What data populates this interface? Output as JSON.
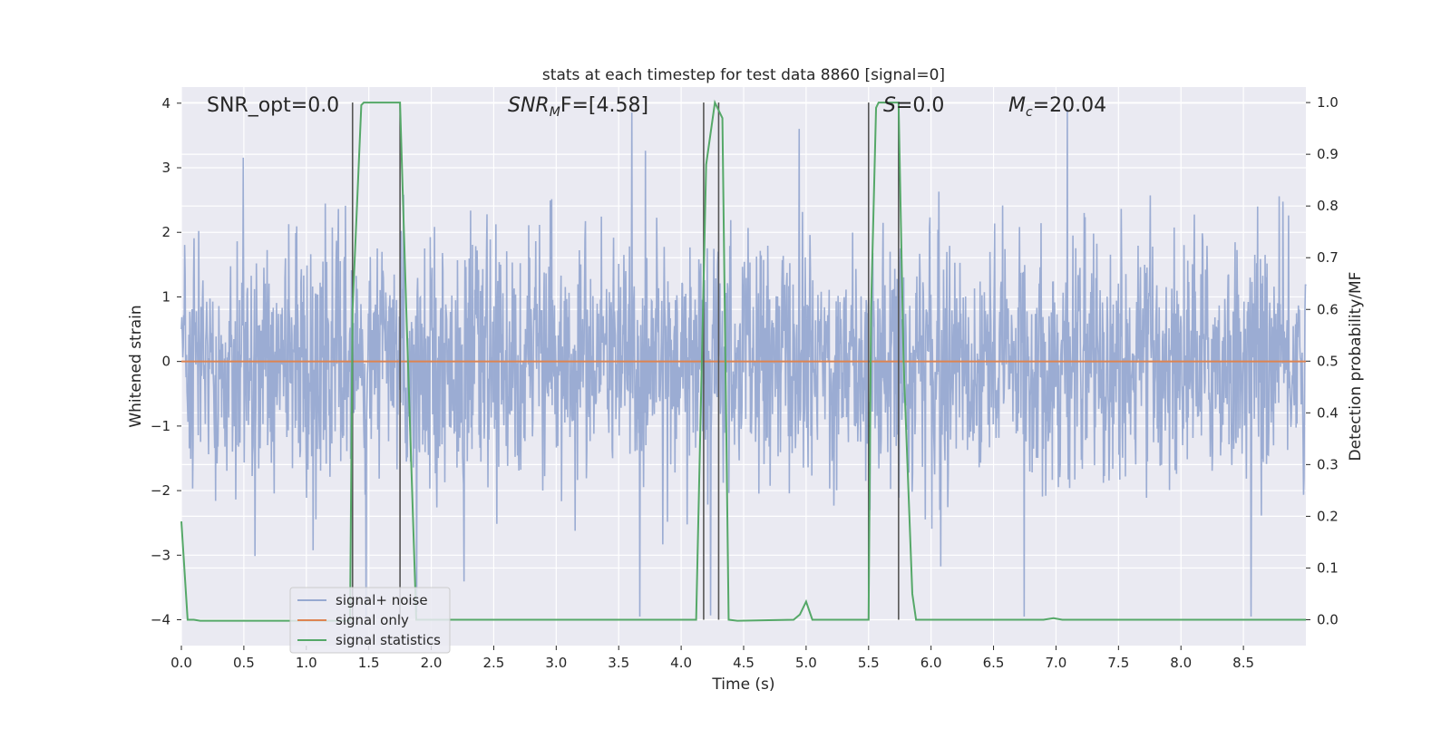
{
  "chart_data": {
    "type": "line",
    "title": "stats at each timestep for test data 8860 [signal=0]",
    "xlabel": "Time (s)",
    "ylabel_left": "Whitened strain",
    "ylabel_right": "Detection probability/MF",
    "xlim": [
      0.0,
      9.0
    ],
    "ylim_left": [
      -4.4,
      4.25
    ],
    "ylim_right": [
      -0.05,
      1.03
    ],
    "x_ticks": [
      "0.0",
      "0.5",
      "1.0",
      "1.5",
      "2.0",
      "2.5",
      "3.0",
      "3.5",
      "4.0",
      "4.5",
      "5.0",
      "5.5",
      "6.0",
      "6.5",
      "7.0",
      "7.5",
      "8.0",
      "8.5"
    ],
    "y_ticks_left": [
      "4",
      "3",
      "2",
      "1",
      "0",
      "−1",
      "−2",
      "−3",
      "−4"
    ],
    "y_ticks_right": [
      "1.0",
      "0.9",
      "0.8",
      "0.7",
      "0.6",
      "0.5",
      "0.4",
      "0.3",
      "0.2",
      "0.1",
      "0.0"
    ],
    "grid": true,
    "legend_position": "lower-left",
    "colors": {
      "background": "#eaeaf2",
      "grid": "#ffffff",
      "noise": "#97a9d1",
      "signal": "#dd8452",
      "stat": "#55a868",
      "vline": "#555555"
    },
    "annotations": {
      "snr_opt": "SNR_opt=0.0",
      "snr_mf_prefix": "SNR",
      "snr_mf_sub": "M",
      "snr_mf_rest": "F=[4.58]",
      "s_italic": "S",
      "s_rest": "=0.0",
      "mc_italic": "M",
      "mc_sub": "c",
      "mc_rest": "=20.04"
    },
    "series": [
      {
        "name": "signal+ noise",
        "axis": "left",
        "description_values": "whitened noise, amplitude mostly within ±2.5, peaks near ±3.9",
        "seed": 8860,
        "x_range": [
          0.0,
          9.0
        ],
        "envelope": 2.2
      },
      {
        "name": "signal only",
        "axis": "left",
        "x": [
          0.0,
          9.0
        ],
        "values": [
          0.0,
          0.0
        ]
      },
      {
        "name": "signal statistics",
        "axis": "right",
        "x": [
          0.0,
          0.05,
          0.1,
          0.15,
          1.35,
          1.37,
          1.44,
          1.46,
          1.75,
          1.8,
          1.88,
          2.0,
          3.0,
          4.12,
          4.2,
          4.27,
          4.33,
          4.38,
          4.45,
          4.9,
          4.95,
          5.0,
          5.05,
          5.5,
          5.52,
          5.56,
          5.58,
          5.74,
          5.78,
          5.85,
          5.88,
          6.0,
          6.9,
          6.98,
          7.05,
          9.0
        ],
        "values": [
          0.19,
          0.0,
          0.0,
          -0.002,
          -0.002,
          0.6,
          0.995,
          1.0,
          1.0,
          0.6,
          0.0,
          0.0,
          0.0,
          0.0,
          0.88,
          1.0,
          0.97,
          0.0,
          -0.002,
          0.0,
          0.01,
          0.035,
          0.0,
          0.0,
          0.6,
          0.99,
          1.0,
          1.0,
          0.5,
          0.05,
          0.0,
          0.0,
          0.0,
          0.003,
          0.0,
          0.0
        ]
      }
    ],
    "vlines": [
      1.37,
      1.75,
      4.18,
      4.3,
      5.5,
      5.74
    ],
    "legend": [
      "signal+ noise",
      "signal only",
      "signal statistics"
    ]
  }
}
